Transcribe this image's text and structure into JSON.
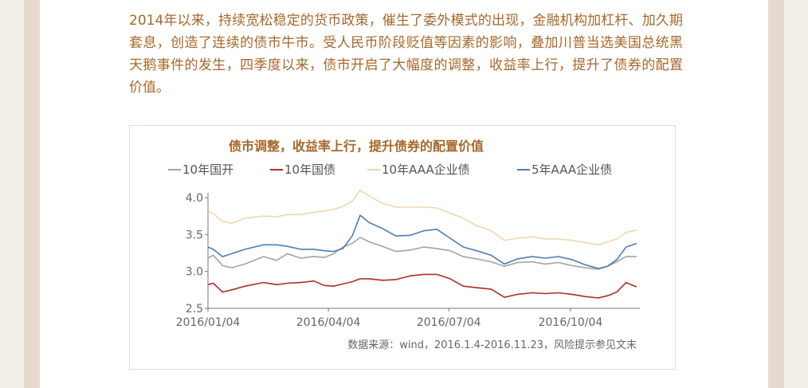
{
  "paragraph": "2014年以来，持续宽松稳定的货币政策，催生了委外模式的出现，金融机构加杠杆、加久期套息，创造了连续的债市牛市。受人民币阶段贬值等因素的影响，叠加川普当选美国总统黑天鹅事件的发生，四季度以来，债市开启了大幅度的调整，收益率上行，提升了债券的配置价值。",
  "chart_data": {
    "type": "line",
    "title": "债市调整，收益率上行，提升债券的配置价值",
    "xlabel": "",
    "ylabel": "",
    "ylim": [
      2.5,
      4.0
    ],
    "yticks": [
      "2.5",
      "3.0",
      "3.5",
      "4.0"
    ],
    "xticks": [
      "2016/01/04",
      "2016/04/04",
      "2016/07/04",
      "2016/10/04"
    ],
    "x_start": "2016-01-04",
    "x_end": "2016-11-23",
    "grid": false,
    "legend_position": "top",
    "series": [
      {
        "name": "10年国开",
        "color": "#a3a3a3",
        "values": [
          [
            "2016-01-04",
            3.18
          ],
          [
            "2016-01-08",
            3.22
          ],
          [
            "2016-01-15",
            3.08
          ],
          [
            "2016-01-22",
            3.05
          ],
          [
            "2016-02-01",
            3.1
          ],
          [
            "2016-02-15",
            3.2
          ],
          [
            "2016-02-25",
            3.15
          ],
          [
            "2016-03-04",
            3.24
          ],
          [
            "2016-03-14",
            3.18
          ],
          [
            "2016-03-24",
            3.2
          ],
          [
            "2016-04-01",
            3.19
          ],
          [
            "2016-04-08",
            3.24
          ],
          [
            "2016-04-15",
            3.33
          ],
          [
            "2016-04-22",
            3.38
          ],
          [
            "2016-04-28",
            3.46
          ],
          [
            "2016-05-05",
            3.4
          ],
          [
            "2016-05-15",
            3.34
          ],
          [
            "2016-05-25",
            3.27
          ],
          [
            "2016-06-05",
            3.29
          ],
          [
            "2016-06-15",
            3.33
          ],
          [
            "2016-06-25",
            3.31
          ],
          [
            "2016-07-05",
            3.28
          ],
          [
            "2016-07-15",
            3.2
          ],
          [
            "2016-07-25",
            3.17
          ],
          [
            "2016-08-05",
            3.13
          ],
          [
            "2016-08-15",
            3.07
          ],
          [
            "2016-08-25",
            3.12
          ],
          [
            "2016-09-05",
            3.13
          ],
          [
            "2016-09-15",
            3.1
          ],
          [
            "2016-09-25",
            3.12
          ],
          [
            "2016-10-05",
            3.08
          ],
          [
            "2016-10-15",
            3.05
          ],
          [
            "2016-10-25",
            3.03
          ],
          [
            "2016-11-01",
            3.07
          ],
          [
            "2016-11-08",
            3.13
          ],
          [
            "2016-11-15",
            3.2
          ],
          [
            "2016-11-23",
            3.2
          ]
        ]
      },
      {
        "name": "10年国债",
        "color": "#b22a2a",
        "values": [
          [
            "2016-01-04",
            2.82
          ],
          [
            "2016-01-08",
            2.84
          ],
          [
            "2016-01-15",
            2.72
          ],
          [
            "2016-01-22",
            2.75
          ],
          [
            "2016-02-01",
            2.8
          ],
          [
            "2016-02-15",
            2.85
          ],
          [
            "2016-02-25",
            2.82
          ],
          [
            "2016-03-04",
            2.84
          ],
          [
            "2016-03-14",
            2.85
          ],
          [
            "2016-03-24",
            2.87
          ],
          [
            "2016-04-01",
            2.81
          ],
          [
            "2016-04-08",
            2.8
          ],
          [
            "2016-04-15",
            2.83
          ],
          [
            "2016-04-22",
            2.86
          ],
          [
            "2016-04-28",
            2.9
          ],
          [
            "2016-05-05",
            2.9
          ],
          [
            "2016-05-15",
            2.88
          ],
          [
            "2016-05-25",
            2.89
          ],
          [
            "2016-06-05",
            2.94
          ],
          [
            "2016-06-15",
            2.96
          ],
          [
            "2016-06-25",
            2.96
          ],
          [
            "2016-07-05",
            2.9
          ],
          [
            "2016-07-15",
            2.8
          ],
          [
            "2016-07-25",
            2.78
          ],
          [
            "2016-08-05",
            2.76
          ],
          [
            "2016-08-15",
            2.65
          ],
          [
            "2016-08-25",
            2.69
          ],
          [
            "2016-09-05",
            2.71
          ],
          [
            "2016-09-15",
            2.7
          ],
          [
            "2016-09-25",
            2.71
          ],
          [
            "2016-10-05",
            2.69
          ],
          [
            "2016-10-15",
            2.66
          ],
          [
            "2016-10-25",
            2.64
          ],
          [
            "2016-11-01",
            2.67
          ],
          [
            "2016-11-08",
            2.72
          ],
          [
            "2016-11-15",
            2.85
          ],
          [
            "2016-11-23",
            2.79
          ]
        ]
      },
      {
        "name": "10年AAA企业债",
        "color": "#f0d8aa",
        "values": [
          [
            "2016-01-04",
            3.82
          ],
          [
            "2016-01-08",
            3.78
          ],
          [
            "2016-01-15",
            3.68
          ],
          [
            "2016-01-22",
            3.65
          ],
          [
            "2016-02-01",
            3.72
          ],
          [
            "2016-02-15",
            3.75
          ],
          [
            "2016-02-25",
            3.74
          ],
          [
            "2016-03-04",
            3.77
          ],
          [
            "2016-03-14",
            3.77
          ],
          [
            "2016-03-24",
            3.8
          ],
          [
            "2016-04-01",
            3.82
          ],
          [
            "2016-04-08",
            3.84
          ],
          [
            "2016-04-15",
            3.88
          ],
          [
            "2016-04-22",
            3.95
          ],
          [
            "2016-04-28",
            4.1
          ],
          [
            "2016-05-05",
            4.02
          ],
          [
            "2016-05-15",
            3.92
          ],
          [
            "2016-05-25",
            3.87
          ],
          [
            "2016-06-05",
            3.87
          ],
          [
            "2016-06-15",
            3.87
          ],
          [
            "2016-06-25",
            3.86
          ],
          [
            "2016-07-05",
            3.79
          ],
          [
            "2016-07-15",
            3.72
          ],
          [
            "2016-07-25",
            3.62
          ],
          [
            "2016-08-05",
            3.55
          ],
          [
            "2016-08-15",
            3.42
          ],
          [
            "2016-08-25",
            3.45
          ],
          [
            "2016-09-05",
            3.47
          ],
          [
            "2016-09-15",
            3.44
          ],
          [
            "2016-09-25",
            3.44
          ],
          [
            "2016-10-05",
            3.42
          ],
          [
            "2016-10-15",
            3.39
          ],
          [
            "2016-10-25",
            3.36
          ],
          [
            "2016-11-01",
            3.4
          ],
          [
            "2016-11-08",
            3.44
          ],
          [
            "2016-11-15",
            3.53
          ],
          [
            "2016-11-23",
            3.56
          ]
        ]
      },
      {
        "name": "5年AAA企业债",
        "color": "#4a7fb8",
        "values": [
          [
            "2016-01-04",
            3.33
          ],
          [
            "2016-01-08",
            3.3
          ],
          [
            "2016-01-15",
            3.2
          ],
          [
            "2016-01-22",
            3.24
          ],
          [
            "2016-02-01",
            3.3
          ],
          [
            "2016-02-15",
            3.36
          ],
          [
            "2016-02-25",
            3.36
          ],
          [
            "2016-03-04",
            3.34
          ],
          [
            "2016-03-14",
            3.3
          ],
          [
            "2016-03-24",
            3.3
          ],
          [
            "2016-04-01",
            3.28
          ],
          [
            "2016-04-08",
            3.27
          ],
          [
            "2016-04-15",
            3.31
          ],
          [
            "2016-04-22",
            3.48
          ],
          [
            "2016-04-28",
            3.76
          ],
          [
            "2016-05-05",
            3.66
          ],
          [
            "2016-05-15",
            3.58
          ],
          [
            "2016-05-25",
            3.48
          ],
          [
            "2016-06-05",
            3.49
          ],
          [
            "2016-06-15",
            3.55
          ],
          [
            "2016-06-25",
            3.57
          ],
          [
            "2016-07-05",
            3.45
          ],
          [
            "2016-07-15",
            3.33
          ],
          [
            "2016-07-25",
            3.28
          ],
          [
            "2016-08-05",
            3.22
          ],
          [
            "2016-08-15",
            3.1
          ],
          [
            "2016-08-25",
            3.17
          ],
          [
            "2016-09-05",
            3.2
          ],
          [
            "2016-09-15",
            3.18
          ],
          [
            "2016-09-25",
            3.2
          ],
          [
            "2016-10-05",
            3.16
          ],
          [
            "2016-10-15",
            3.09
          ],
          [
            "2016-10-25",
            3.04
          ],
          [
            "2016-11-01",
            3.07
          ],
          [
            "2016-11-08",
            3.16
          ],
          [
            "2016-11-15",
            3.33
          ],
          [
            "2016-11-23",
            3.38
          ]
        ]
      }
    ]
  },
  "source_note": "数据来源：wind，2016.1.4-2016.11.23，风险提示参见文末"
}
